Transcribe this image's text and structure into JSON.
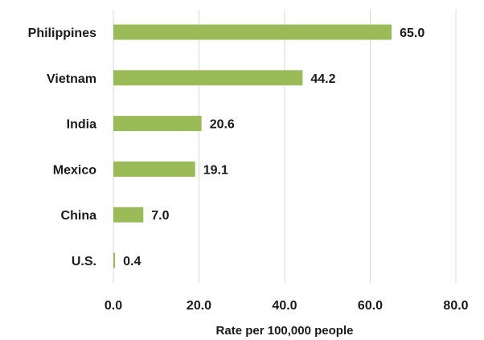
{
  "chart_data": {
    "type": "bar",
    "orientation": "horizontal",
    "categories": [
      "Philippines",
      "Vietnam",
      "India",
      "Mexico",
      "China",
      "U.S."
    ],
    "values": [
      65.0,
      44.2,
      20.6,
      19.1,
      7.0,
      0.4
    ],
    "value_labels": [
      "65.0",
      "44.2",
      "20.6",
      "19.1",
      "7.0",
      "0.4"
    ],
    "xlabel": "Rate per 100,000 people",
    "ylabel": "",
    "xlim": [
      0,
      80
    ],
    "xticks": [
      0,
      20,
      40,
      60,
      80
    ],
    "xtick_labels": [
      "0.0",
      "20.0",
      "40.0",
      "60.0",
      "80.0"
    ],
    "grid": "vertical",
    "legend": "none",
    "colors": {
      "bar": "#9bbb59",
      "grid": "#d9d9d9",
      "text": "#1a1a1a"
    }
  }
}
